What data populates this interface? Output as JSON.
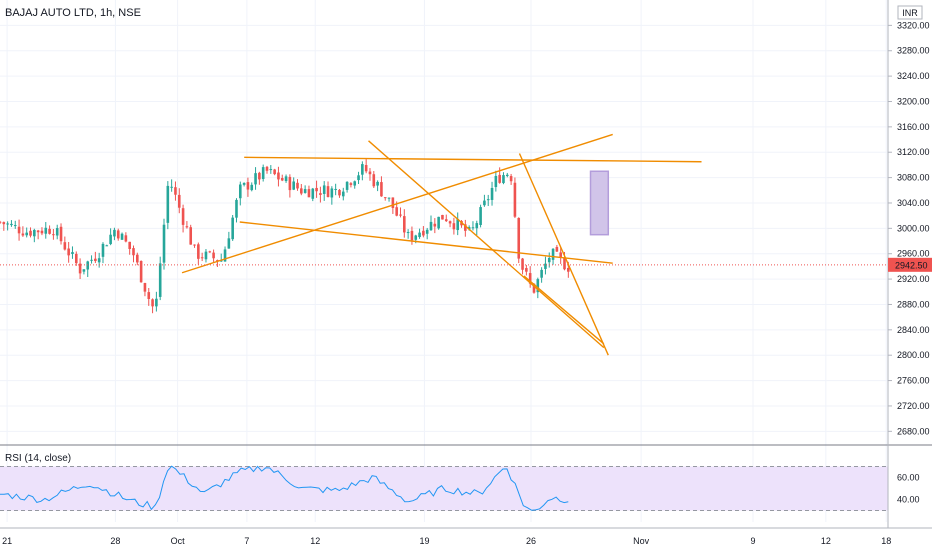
{
  "header": {
    "title": "BAJAJ AUTO LTD, 1h, NSE",
    "currency": "INR"
  },
  "rsi": {
    "label": "RSI (14, close)",
    "levels": [
      70,
      30
    ],
    "ticks": [
      60,
      40
    ]
  },
  "price_badge": {
    "value": "2942.50",
    "color": "#ef5350"
  },
  "colors": {
    "up": "#26a69a",
    "down": "#ef5350",
    "trend": "#f08c00",
    "rsi_line": "#2196f3",
    "rsi_band": "#ede2fb",
    "measure": "#b39ddb"
  },
  "chart_data": {
    "type": "candlestick",
    "title": "BAJAJ AUTO LTD, 1h, NSE",
    "ylim": [
      2660,
      3360
    ],
    "y_ticks": [
      2680,
      2720,
      2760,
      2800,
      2840,
      2880,
      2920,
      2960,
      3000,
      3040,
      3080,
      3120,
      3160,
      3200,
      3240,
      3280,
      3320
    ],
    "x_ticks": [
      "21",
      "28",
      "Oct",
      "7",
      "12",
      "19",
      "26",
      "Nov",
      "9",
      "12",
      "18"
    ],
    "last_price": 2942.5,
    "price_path": [
      {
        "t": 0,
        "p": 3010
      },
      {
        "t": 0.03,
        "p": 2995
      },
      {
        "t": 0.06,
        "p": 3000
      },
      {
        "t": 0.09,
        "p": 2935
      },
      {
        "t": 0.11,
        "p": 2960
      },
      {
        "t": 0.13,
        "p": 3000
      },
      {
        "t": 0.15,
        "p": 2960
      },
      {
        "t": 0.17,
        "p": 2880
      },
      {
        "t": 0.175,
        "p": 2870
      },
      {
        "t": 0.19,
        "p": 3080
      },
      {
        "t": 0.22,
        "p": 2960
      },
      {
        "t": 0.25,
        "p": 2950
      },
      {
        "t": 0.27,
        "p": 3060
      },
      {
        "t": 0.3,
        "p": 3090
      },
      {
        "t": 0.34,
        "p": 3060
      },
      {
        "t": 0.38,
        "p": 3060
      },
      {
        "t": 0.41,
        "p": 3095
      },
      {
        "t": 0.44,
        "p": 3040
      },
      {
        "t": 0.46,
        "p": 2985
      },
      {
        "t": 0.5,
        "p": 3020
      },
      {
        "t": 0.53,
        "p": 2990
      },
      {
        "t": 0.56,
        "p": 3080
      },
      {
        "t": 0.575,
        "p": 3090
      },
      {
        "t": 0.585,
        "p": 2950
      },
      {
        "t": 0.6,
        "p": 2900
      },
      {
        "t": 0.62,
        "p": 2960
      },
      {
        "t": 0.64,
        "p": 2940
      }
    ],
    "rsi_path": [
      {
        "t": 0,
        "p": 45
      },
      {
        "t": 0.05,
        "p": 40
      },
      {
        "t": 0.1,
        "p": 55
      },
      {
        "t": 0.15,
        "p": 38
      },
      {
        "t": 0.175,
        "p": 33
      },
      {
        "t": 0.19,
        "p": 72
      },
      {
        "t": 0.23,
        "p": 45
      },
      {
        "t": 0.27,
        "p": 65
      },
      {
        "t": 0.3,
        "p": 70
      },
      {
        "t": 0.34,
        "p": 50
      },
      {
        "t": 0.38,
        "p": 48
      },
      {
        "t": 0.42,
        "p": 60
      },
      {
        "t": 0.46,
        "p": 38
      },
      {
        "t": 0.5,
        "p": 50
      },
      {
        "t": 0.54,
        "p": 45
      },
      {
        "t": 0.57,
        "p": 71
      },
      {
        "t": 0.59,
        "p": 35
      },
      {
        "t": 0.6,
        "p": 28
      },
      {
        "t": 0.62,
        "p": 42
      },
      {
        "t": 0.64,
        "p": 40
      }
    ],
    "rsi_ylim": [
      25,
      75
    ],
    "trendlines": [
      {
        "t1": 0.275,
        "p1": 3112,
        "t2": 0.79,
        "p2": 3105
      },
      {
        "t1": 0.205,
        "p1": 2930,
        "t2": 0.69,
        "p2": 3148
      },
      {
        "t1": 0.27,
        "p1": 3010,
        "t2": 0.69,
        "p2": 2945
      },
      {
        "t1": 0.415,
        "p1": 3138,
        "t2": 0.68,
        "p2": 2812
      },
      {
        "t1": 0.585,
        "p1": 3118,
        "t2": 0.685,
        "p2": 2800
      },
      {
        "t1": 0.59,
        "p1": 2925,
        "t2": 0.68,
        "p2": 2818
      }
    ],
    "measure_box": {
      "t1": 0.665,
      "t2": 0.685,
      "p1": 2990,
      "p2": 3090
    }
  }
}
